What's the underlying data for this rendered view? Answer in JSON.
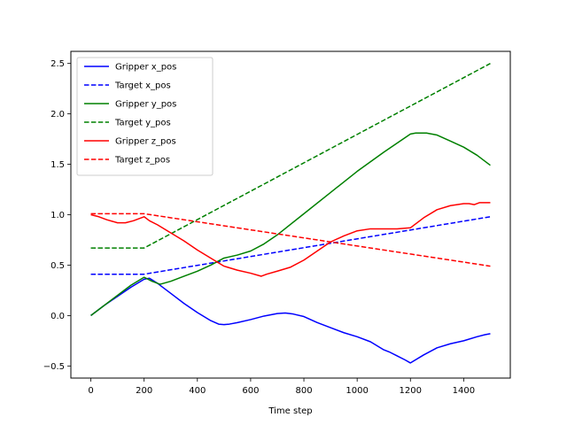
{
  "chart_data": {
    "type": "line",
    "title": "",
    "xlabel": "Time step",
    "ylabel": "",
    "xlim": [
      -75,
      1575
    ],
    "ylim": [
      -0.62,
      2.62
    ],
    "xticks": [
      0,
      200,
      400,
      600,
      800,
      1000,
      1200,
      1400
    ],
    "xtick_labels": [
      "0",
      "200",
      "400",
      "600",
      "800",
      "1000",
      "1200",
      "1400"
    ],
    "yticks": [
      -0.5,
      0.0,
      0.5,
      1.0,
      1.5,
      2.0,
      2.5
    ],
    "ytick_labels": [
      "−0.5",
      "0.0",
      "0.5",
      "1.0",
      "1.5",
      "2.0",
      "2.5"
    ],
    "grid": false,
    "legend_position": "upper-left",
    "series": [
      {
        "name": "Gripper x_pos",
        "color": "#0000ff",
        "dash": "solid",
        "x": [
          0,
          50,
          100,
          150,
          200,
          220,
          250,
          300,
          350,
          400,
          450,
          480,
          500,
          520,
          550,
          600,
          650,
          700,
          730,
          760,
          800,
          850,
          900,
          950,
          1000,
          1050,
          1100,
          1120,
          1150,
          1180,
          1200,
          1250,
          1300,
          1350,
          1400,
          1450,
          1480,
          1500
        ],
        "y": [
          0.0,
          0.1,
          0.19,
          0.28,
          0.36,
          0.37,
          0.32,
          0.22,
          0.12,
          0.03,
          -0.05,
          -0.085,
          -0.09,
          -0.085,
          -0.07,
          -0.04,
          -0.005,
          0.02,
          0.025,
          0.015,
          -0.01,
          -0.07,
          -0.12,
          -0.17,
          -0.21,
          -0.26,
          -0.34,
          -0.36,
          -0.4,
          -0.44,
          -0.47,
          -0.39,
          -0.32,
          -0.28,
          -0.25,
          -0.21,
          -0.19,
          -0.18
        ]
      },
      {
        "name": "Target x_pos",
        "color": "#0000ff",
        "dash": "dashed",
        "x": [
          0,
          200,
          1500
        ],
        "y": [
          0.41,
          0.41,
          0.98
        ]
      },
      {
        "name": "Gripper y_pos",
        "color": "#008000",
        "dash": "solid",
        "x": [
          0,
          50,
          100,
          150,
          200,
          230,
          260,
          300,
          350,
          400,
          450,
          500,
          550,
          600,
          650,
          700,
          800,
          900,
          1000,
          1100,
          1200,
          1220,
          1260,
          1300,
          1350,
          1400,
          1450,
          1500
        ],
        "y": [
          0.0,
          0.1,
          0.2,
          0.3,
          0.38,
          0.34,
          0.31,
          0.34,
          0.39,
          0.44,
          0.5,
          0.57,
          0.6,
          0.64,
          0.71,
          0.8,
          1.01,
          1.22,
          1.43,
          1.62,
          1.8,
          1.81,
          1.81,
          1.79,
          1.73,
          1.67,
          1.59,
          1.49
        ]
      },
      {
        "name": "Target y_pos",
        "color": "#008000",
        "dash": "dashed",
        "x": [
          0,
          200,
          1500
        ],
        "y": [
          0.67,
          0.67,
          2.5
        ]
      },
      {
        "name": "Gripper z_pos",
        "color": "#ff0000",
        "dash": "solid",
        "x": [
          0,
          30,
          60,
          100,
          130,
          160,
          180,
          200,
          220,
          250,
          300,
          350,
          400,
          450,
          500,
          550,
          600,
          640,
          660,
          700,
          750,
          800,
          850,
          900,
          950,
          1000,
          1050,
          1100,
          1150,
          1200,
          1250,
          1300,
          1350,
          1400,
          1420,
          1440,
          1460,
          1480,
          1500
        ],
        "y": [
          1.0,
          0.98,
          0.95,
          0.92,
          0.92,
          0.94,
          0.96,
          0.98,
          0.94,
          0.9,
          0.82,
          0.74,
          0.65,
          0.57,
          0.49,
          0.45,
          0.42,
          0.39,
          0.41,
          0.44,
          0.48,
          0.55,
          0.64,
          0.73,
          0.79,
          0.84,
          0.86,
          0.86,
          0.86,
          0.87,
          0.97,
          1.05,
          1.09,
          1.11,
          1.11,
          1.1,
          1.12,
          1.12,
          1.12
        ]
      },
      {
        "name": "Target z_pos",
        "color": "#ff0000",
        "dash": "dashed",
        "x": [
          0,
          200,
          1500
        ],
        "y": [
          1.01,
          1.01,
          0.49
        ]
      }
    ]
  }
}
